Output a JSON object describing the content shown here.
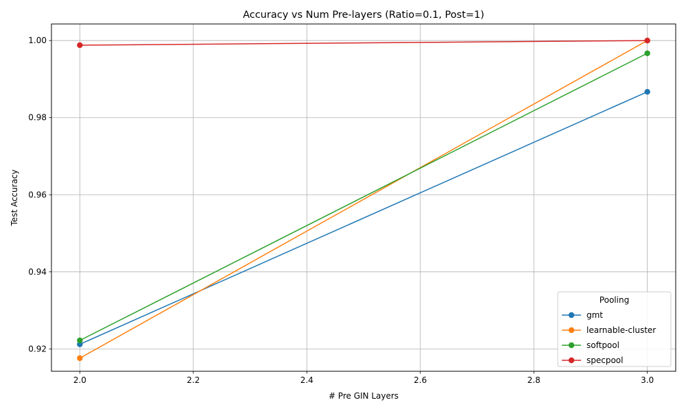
{
  "chart_data": {
    "type": "line",
    "title": "Accuracy vs Num Pre-layers (Ratio=0.1, Post=1)",
    "xlabel": "# Pre GIN Layers",
    "ylabel": "Test Accuracy",
    "xlim": [
      1.95,
      3.05
    ],
    "ylim": [
      0.9142,
      1.0043
    ],
    "x_ticks": [
      2.0,
      2.2,
      2.4,
      2.6,
      2.8,
      3.0
    ],
    "x_tick_labels": [
      "2.0",
      "2.2",
      "2.4",
      "2.6",
      "2.8",
      "3.0"
    ],
    "y_ticks": [
      0.92,
      0.94,
      0.96,
      0.98,
      1.0
    ],
    "y_tick_labels": [
      "0.92",
      "0.94",
      "0.96",
      "0.98",
      "1.00"
    ],
    "grid": true,
    "legend": {
      "title": "Pooling",
      "placement": "lower-right"
    },
    "x": [
      2.0,
      3.0
    ],
    "series": [
      {
        "name": "gmt",
        "color": "#1f77b4",
        "values": [
          0.9212,
          0.9867
        ]
      },
      {
        "name": "learnable-cluster",
        "color": "#ff7f0e",
        "values": [
          0.9176,
          1.0
        ]
      },
      {
        "name": "softpool",
        "color": "#2ca02c",
        "values": [
          0.9222,
          0.9967
        ]
      },
      {
        "name": "specpool",
        "color": "#d62728",
        "values": [
          0.9988,
          1.0
        ]
      }
    ]
  }
}
